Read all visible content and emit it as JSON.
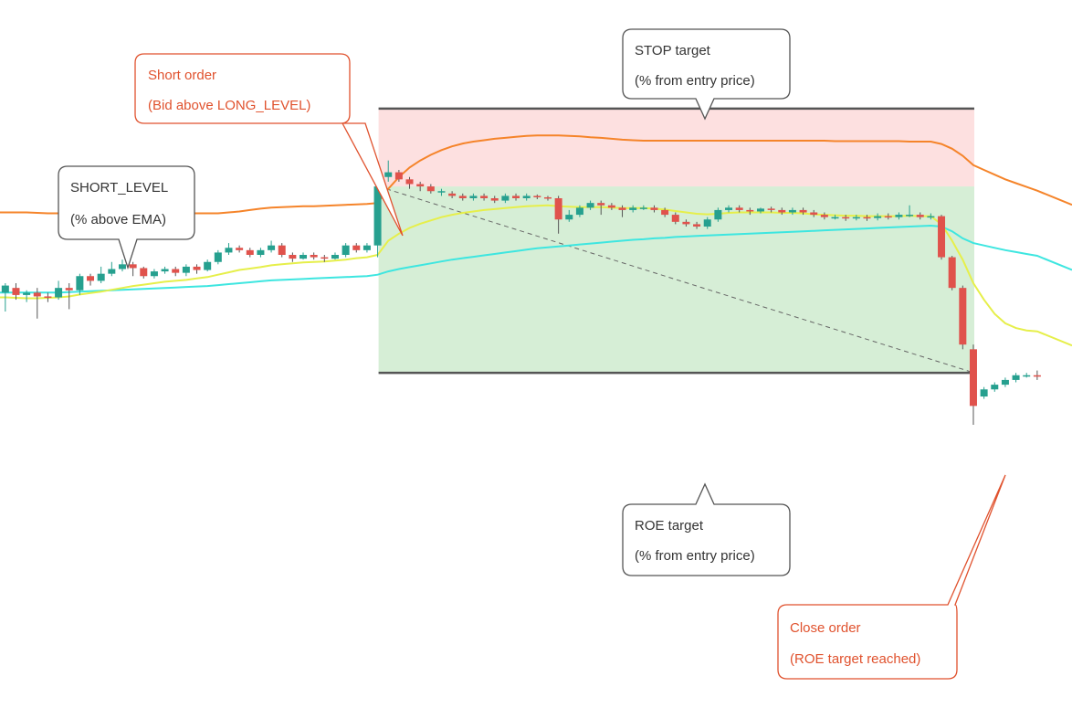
{
  "colors": {
    "bull": "#26a08f",
    "bear": "#e0524c",
    "stop_zone": "#fde0e0",
    "roe_zone": "#d6eed6",
    "band": "#f5842a",
    "ema_fast": "#e6ef4a",
    "ema_slow": "#3ee6e0",
    "callout_neutral": "#555555",
    "callout_order": "#e0522e",
    "target_line": "#555555"
  },
  "callouts": {
    "stop": {
      "line1": "STOP target",
      "line2": "(% from entry price)"
    },
    "roe": {
      "line1": "ROE target",
      "line2": "(% from entry price)"
    },
    "short_level": {
      "line1": "SHORT_LEVEL",
      "line2": "(% above EMA)"
    },
    "short_order": {
      "line1": "Short order",
      "line2": "(Bid above LONG_LEVEL)"
    },
    "close_order": {
      "line1": "Close order",
      "line2": "(ROE target reached)"
    }
  },
  "chart_data": {
    "type": "candlestick",
    "title": "",
    "xlabel": "",
    "ylabel": "",
    "grid": false,
    "ylim": [
      0,
      100
    ],
    "candles": [
      [
        68.0,
        69.5,
        70.0,
        64.0
      ],
      [
        69.0,
        67.5,
        70.0,
        66.5
      ],
      [
        67.5,
        68.0,
        68.5,
        66.0
      ],
      [
        68.0,
        67.2,
        69.0,
        62.5
      ],
      [
        67.2,
        67.0,
        68.0,
        66.0
      ],
      [
        67.0,
        69.0,
        70.5,
        66.5
      ],
      [
        69.0,
        68.5,
        70.0,
        64.5
      ],
      [
        68.5,
        71.5,
        72.0,
        67.5
      ],
      [
        71.5,
        70.5,
        72.0,
        69.5
      ],
      [
        70.5,
        72.0,
        73.5,
        70.0
      ],
      [
        72.0,
        73.0,
        74.5,
        71.5
      ],
      [
        73.0,
        74.0,
        75.0,
        72.5
      ],
      [
        74.0,
        73.2,
        74.5,
        71.5
      ],
      [
        73.2,
        71.5,
        73.5,
        71.0
      ],
      [
        71.5,
        72.5,
        73.0,
        71.0
      ],
      [
        72.5,
        73.0,
        73.5,
        72.0
      ],
      [
        73.0,
        72.2,
        73.5,
        71.5
      ],
      [
        72.2,
        73.5,
        74.0,
        71.5
      ],
      [
        73.5,
        72.8,
        74.0,
        72.0
      ],
      [
        72.8,
        74.5,
        75.0,
        72.5
      ],
      [
        74.5,
        76.5,
        77.0,
        74.0
      ],
      [
        76.5,
        77.5,
        78.5,
        76.0
      ],
      [
        77.5,
        77.0,
        78.0,
        76.5
      ],
      [
        77.0,
        76.0,
        77.5,
        75.5
      ],
      [
        76.0,
        77.0,
        77.5,
        75.5
      ],
      [
        77.0,
        78.0,
        79.0,
        76.5
      ],
      [
        78.0,
        76.0,
        78.5,
        75.5
      ],
      [
        76.0,
        75.2,
        76.5,
        74.5
      ],
      [
        75.2,
        76.0,
        76.5,
        75.0
      ],
      [
        76.0,
        75.5,
        76.5,
        75.0
      ],
      [
        75.5,
        75.2,
        76.0,
        74.5
      ],
      [
        75.2,
        76.0,
        76.5,
        75.0
      ],
      [
        76.0,
        78.0,
        78.5,
        75.5
      ],
      [
        78.0,
        77.0,
        78.5,
        76.5
      ],
      [
        77.0,
        78.0,
        78.5,
        76.5
      ],
      [
        78.0,
        90.5,
        91.5,
        75.5
      ],
      [
        92.5,
        93.5,
        96.0,
        91.5
      ],
      [
        93.5,
        92.0,
        94.0,
        91.5
      ],
      [
        92.0,
        91.0,
        92.5,
        90.0
      ],
      [
        91.0,
        90.5,
        91.5,
        89.5
      ],
      [
        90.5,
        89.5,
        91.0,
        89.0
      ],
      [
        89.5,
        89.5,
        90.0,
        88.5
      ],
      [
        89.0,
        88.5,
        89.5,
        88.0
      ],
      [
        88.5,
        88.0,
        89.0,
        87.5
      ],
      [
        88.0,
        88.5,
        89.0,
        87.5
      ],
      [
        88.5,
        88.0,
        89.0,
        87.5
      ],
      [
        88.0,
        87.5,
        88.5,
        87.0
      ],
      [
        87.5,
        88.5,
        89.0,
        87.0
      ],
      [
        88.5,
        88.0,
        89.0,
        87.5
      ],
      [
        88.0,
        88.5,
        89.0,
        87.5
      ],
      [
        88.5,
        88.2,
        88.8,
        87.8
      ],
      [
        88.2,
        88.0,
        88.5,
        87.5
      ],
      [
        88.0,
        83.5,
        88.5,
        80.5
      ],
      [
        83.5,
        84.5,
        85.5,
        83.0
      ],
      [
        84.5,
        86.0,
        86.5,
        84.0
      ],
      [
        86.0,
        87.0,
        87.5,
        85.5
      ],
      [
        87.0,
        86.5,
        87.5,
        84.5
      ],
      [
        86.5,
        86.0,
        87.0,
        85.5
      ],
      [
        86.0,
        85.5,
        86.5,
        84.0
      ],
      [
        85.5,
        86.0,
        86.5,
        85.0
      ],
      [
        86.0,
        86.0,
        86.5,
        85.5
      ],
      [
        86.0,
        85.5,
        86.5,
        85.0
      ],
      [
        85.5,
        84.5,
        86.0,
        84.0
      ],
      [
        84.5,
        83.0,
        85.0,
        82.5
      ],
      [
        83.0,
        82.5,
        83.5,
        82.0
      ],
      [
        82.5,
        82.0,
        83.0,
        81.5
      ],
      [
        82.0,
        83.5,
        84.0,
        81.5
      ],
      [
        83.5,
        85.5,
        86.0,
        83.0
      ],
      [
        85.5,
        86.0,
        86.5,
        85.0
      ],
      [
        86.0,
        85.5,
        86.5,
        85.0
      ],
      [
        85.5,
        85.2,
        86.0,
        84.5
      ],
      [
        85.2,
        85.8,
        86.0,
        84.8
      ],
      [
        85.8,
        85.5,
        86.2,
        85.0
      ],
      [
        85.5,
        85.0,
        86.0,
        84.5
      ],
      [
        85.0,
        85.5,
        86.0,
        84.5
      ],
      [
        85.5,
        85.0,
        86.0,
        84.5
      ],
      [
        85.0,
        84.5,
        85.5,
        84.0
      ],
      [
        84.5,
        84.0,
        85.0,
        83.5
      ],
      [
        84.0,
        84.0,
        84.5,
        83.5
      ],
      [
        84.0,
        83.8,
        84.5,
        83.2
      ],
      [
        83.8,
        84.0,
        84.5,
        83.3
      ],
      [
        84.0,
        83.8,
        84.5,
        83.2
      ],
      [
        83.8,
        84.2,
        84.8,
        83.3
      ],
      [
        84.2,
        84.0,
        84.8,
        83.5
      ],
      [
        84.0,
        84.5,
        85.0,
        83.5
      ],
      [
        84.5,
        84.5,
        86.5,
        84.0
      ],
      [
        84.5,
        84.0,
        85.0,
        83.5
      ],
      [
        84.0,
        84.2,
        84.8,
        83.5
      ],
      [
        84.2,
        75.5,
        84.5,
        75.0
      ],
      [
        75.5,
        69.0,
        75.8,
        68.5
      ],
      [
        69.0,
        57.0,
        69.5,
        56.0
      ],
      [
        56.0,
        44.0,
        57.0,
        40.0
      ],
      [
        46.0,
        47.5,
        48.0,
        45.5
      ],
      [
        47.5,
        48.5,
        49.0,
        47.0
      ],
      [
        48.5,
        49.5,
        50.0,
        48.0
      ],
      [
        49.5,
        50.5,
        51.0,
        49.0
      ],
      [
        50.5,
        50.5,
        51.0,
        50.0
      ],
      [
        50.5,
        50.2,
        51.5,
        49.5
      ]
    ],
    "ema_fast": [
      67.0,
      66.9,
      66.8,
      66.8,
      66.9,
      67.0,
      67.2,
      67.6,
      67.9,
      68.2,
      68.6,
      69.0,
      69.4,
      69.7,
      70.0,
      70.3,
      70.5,
      70.7,
      71.0,
      71.3,
      71.8,
      72.3,
      72.8,
      73.1,
      73.4,
      73.8,
      74.0,
      74.2,
      74.4,
      74.5,
      74.6,
      74.8,
      75.0,
      75.3,
      75.5,
      76.0,
      79.0,
      80.5,
      81.7,
      82.6,
      83.3,
      84.0,
      84.5,
      84.9,
      85.2,
      85.5,
      85.7,
      85.9,
      86.1,
      86.3,
      86.4,
      86.5,
      86.3,
      86.2,
      86.1,
      86.1,
      86.1,
      86.0,
      85.9,
      85.9,
      85.9,
      85.8,
      85.6,
      85.3,
      85.0,
      84.7,
      84.6,
      84.7,
      84.9,
      85.0,
      85.0,
      85.0,
      85.0,
      84.9,
      84.9,
      84.8,
      84.6,
      84.5,
      84.4,
      84.3,
      84.3,
      84.2,
      84.2,
      84.2,
      84.2,
      84.3,
      84.2,
      84.2,
      82.5,
      79.0,
      75.0,
      70.0,
      66.5,
      63.5,
      61.5,
      60.5,
      60.0,
      59.8
    ],
    "ema_slow": [
      68.0,
      68.0,
      68.0,
      68.0,
      68.0,
      68.0,
      68.1,
      68.2,
      68.3,
      68.4,
      68.5,
      68.6,
      68.7,
      68.8,
      68.9,
      69.0,
      69.1,
      69.2,
      69.3,
      69.4,
      69.6,
      69.8,
      70.0,
      70.2,
      70.4,
      70.6,
      70.7,
      70.8,
      70.9,
      71.0,
      71.1,
      71.2,
      71.3,
      71.4,
      71.5,
      71.8,
      72.5,
      73.0,
      73.4,
      73.8,
      74.2,
      74.6,
      75.0,
      75.3,
      75.6,
      75.9,
      76.2,
      76.5,
      76.8,
      77.1,
      77.4,
      77.6,
      77.8,
      78.0,
      78.2,
      78.4,
      78.6,
      78.8,
      79.0,
      79.2,
      79.3,
      79.5,
      79.6,
      79.8,
      79.9,
      80.0,
      80.1,
      80.2,
      80.3,
      80.4,
      80.5,
      80.6,
      80.7,
      80.8,
      80.9,
      81.0,
      81.1,
      81.2,
      81.3,
      81.4,
      81.5,
      81.6,
      81.7,
      81.8,
      81.9,
      82.0,
      82.1,
      82.2,
      82.0,
      81.0,
      79.5,
      78.5,
      78.0,
      77.5,
      77.0,
      76.6,
      76.2,
      75.8
    ],
    "band_upper": [
      85.0,
      85.0,
      85.0,
      84.9,
      84.8,
      84.8,
      84.8,
      84.8,
      84.8,
      84.8,
      84.8,
      84.8,
      84.8,
      84.8,
      84.8,
      84.8,
      84.8,
      84.8,
      84.8,
      84.8,
      84.8,
      85.0,
      85.2,
      85.5,
      85.8,
      86.0,
      86.1,
      86.2,
      86.3,
      86.3,
      86.4,
      86.5,
      86.6,
      86.7,
      86.8,
      87.0,
      90.0,
      92.5,
      94.5,
      96.0,
      97.2,
      98.2,
      99.0,
      99.6,
      100.0,
      100.3,
      100.6,
      100.8,
      101.0,
      101.2,
      101.3,
      101.3,
      101.3,
      101.2,
      101.1,
      100.9,
      100.8,
      100.6,
      100.4,
      100.3,
      100.2,
      100.2,
      100.2,
      100.2,
      100.2,
      100.2,
      100.2,
      100.2,
      100.2,
      100.2,
      100.2,
      100.2,
      100.2,
      100.2,
      100.2,
      100.2,
      100.2,
      100.2,
      100.1,
      100.1,
      100.1,
      100.1,
      100.1,
      100.1,
      100.1,
      100.0,
      100.0,
      100.0,
      99.5,
      98.5,
      97.0,
      95.0,
      94.0,
      93.0,
      92.0,
      91.2,
      90.4,
      89.6
    ],
    "trade": {
      "entry_index": 35,
      "entry_price": 90.5,
      "stop_target": 107.0,
      "roe_target": 51.0,
      "exit_index": 91
    }
  }
}
